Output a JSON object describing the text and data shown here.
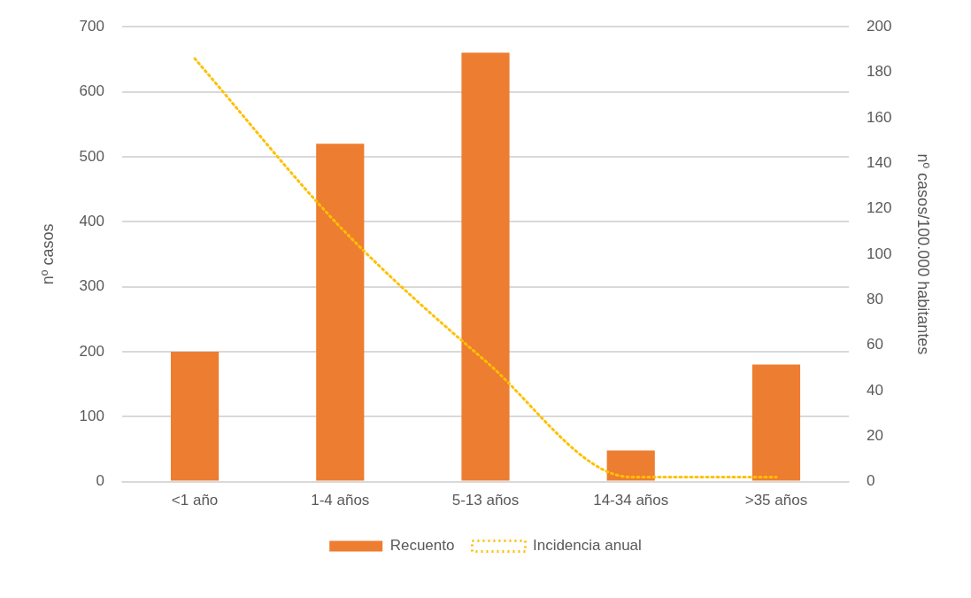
{
  "chart_data": {
    "type": "bar",
    "ylabel": "nº casos",
    "y2label": "nº casos/100.000 habitantes",
    "categories": [
      "<1 año",
      "1-4 años",
      "5-13 años",
      "14-34 años",
      ">35 años"
    ],
    "series": [
      {
        "name": "Recuento",
        "color": "#ed7d31",
        "values": [
          200,
          520,
          660,
          48,
          180
        ]
      },
      {
        "name": "Incidencia anual",
        "type": "line",
        "axis": "y2",
        "color": "#ffc000",
        "line_style": "dotted",
        "marker": "none",
        "values": [
          186,
          112,
          53,
          2,
          2
        ]
      }
    ],
    "ylim": [
      0,
      700
    ],
    "yticks": [
      0,
      100,
      200,
      300,
      400,
      500,
      600,
      700
    ],
    "y2lim": [
      0,
      200
    ],
    "y2ticks": [
      0,
      20,
      40,
      60,
      80,
      100,
      120,
      140,
      160,
      180,
      200
    ],
    "grid": "y",
    "legend": "bottom"
  }
}
